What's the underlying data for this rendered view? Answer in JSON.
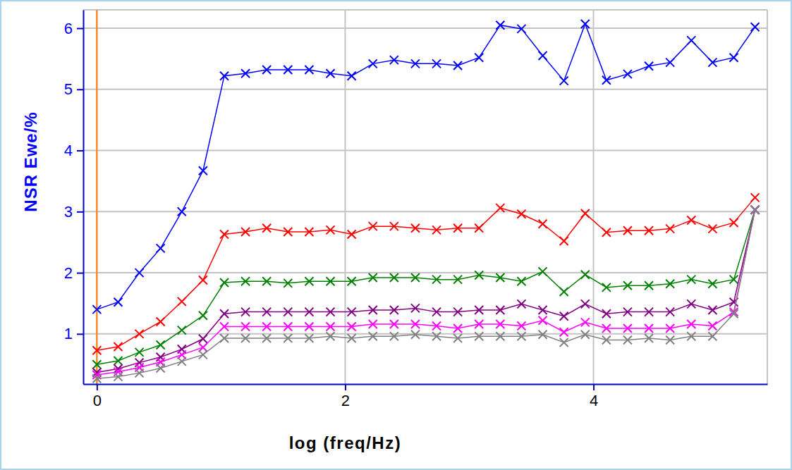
{
  "chart_data": {
    "type": "line",
    "x_label": "log (freq/Hz)",
    "y_label": "NSR Ewe/%",
    "x": [
      0,
      0.171,
      0.342,
      0.513,
      0.684,
      0.855,
      1.026,
      1.197,
      1.368,
      1.539,
      1.71,
      1.881,
      2.052,
      2.223,
      2.394,
      2.565,
      2.736,
      2.907,
      3.078,
      3.249,
      3.42,
      3.591,
      3.762,
      3.933,
      4.104,
      4.275,
      4.446,
      4.617,
      4.788,
      4.959,
      5.13,
      5.301
    ],
    "series": [
      {
        "color": "#0000ff",
        "values": [
          1.4,
          1.52,
          2.0,
          2.4,
          3.0,
          3.67,
          5.22,
          5.26,
          5.32,
          5.32,
          5.32,
          5.26,
          5.22,
          5.42,
          5.48,
          5.42,
          5.42,
          5.39,
          5.52,
          6.05,
          5.99,
          5.55,
          5.14,
          6.07,
          5.15,
          5.25,
          5.38,
          5.44,
          5.8,
          5.44,
          5.52,
          6.02
        ]
      },
      {
        "color": "#ff0000",
        "values": [
          0.73,
          0.79,
          1.0,
          1.2,
          1.53,
          1.88,
          2.63,
          2.67,
          2.73,
          2.67,
          2.67,
          2.7,
          2.63,
          2.76,
          2.76,
          2.73,
          2.7,
          2.73,
          2.73,
          3.06,
          2.96,
          2.8,
          2.52,
          2.97,
          2.66,
          2.69,
          2.69,
          2.72,
          2.86,
          2.72,
          2.82,
          3.23
        ]
      },
      {
        "color": "#008000",
        "values": [
          0.5,
          0.56,
          0.7,
          0.82,
          1.06,
          1.3,
          1.84,
          1.86,
          1.86,
          1.83,
          1.86,
          1.86,
          1.86,
          1.92,
          1.92,
          1.92,
          1.89,
          1.89,
          1.96,
          1.92,
          1.86,
          2.02,
          1.69,
          1.97,
          1.76,
          1.79,
          1.79,
          1.82,
          1.89,
          1.82,
          1.89,
          3.03
        ]
      },
      {
        "color": "#800080",
        "values": [
          0.37,
          0.43,
          0.53,
          0.62,
          0.75,
          0.92,
          1.33,
          1.36,
          1.36,
          1.36,
          1.36,
          1.36,
          1.36,
          1.39,
          1.39,
          1.42,
          1.36,
          1.36,
          1.39,
          1.39,
          1.49,
          1.39,
          1.29,
          1.49,
          1.33,
          1.36,
          1.36,
          1.36,
          1.49,
          1.39,
          1.52,
          3.03
        ]
      },
      {
        "color": "#ff00ff",
        "values": [
          0.33,
          0.38,
          0.45,
          0.54,
          0.66,
          0.78,
          1.12,
          1.12,
          1.12,
          1.12,
          1.12,
          1.12,
          1.12,
          1.16,
          1.16,
          1.16,
          1.13,
          1.09,
          1.16,
          1.16,
          1.13,
          1.22,
          1.03,
          1.19,
          1.09,
          1.09,
          1.09,
          1.09,
          1.16,
          1.13,
          1.36,
          3.03
        ]
      },
      {
        "color": "#808080",
        "values": [
          0.27,
          0.3,
          0.36,
          0.44,
          0.55,
          0.66,
          0.93,
          0.93,
          0.93,
          0.93,
          0.93,
          0.96,
          0.93,
          0.96,
          0.96,
          0.99,
          0.96,
          0.93,
          0.96,
          0.96,
          0.96,
          0.99,
          0.86,
          0.99,
          0.9,
          0.9,
          0.93,
          0.9,
          0.96,
          0.96,
          1.33,
          3.03
        ]
      }
    ],
    "marker": "x",
    "xlim": [
      -0.11,
      5.4
    ],
    "ylim": [
      0.18,
      6.3
    ],
    "xticks": [
      0,
      2,
      4
    ],
    "yticks": [
      1,
      2,
      3,
      4,
      5,
      6
    ],
    "grid": true,
    "reference_lines": [
      {
        "x": 0,
        "color": "#ff8000"
      }
    ]
  }
}
